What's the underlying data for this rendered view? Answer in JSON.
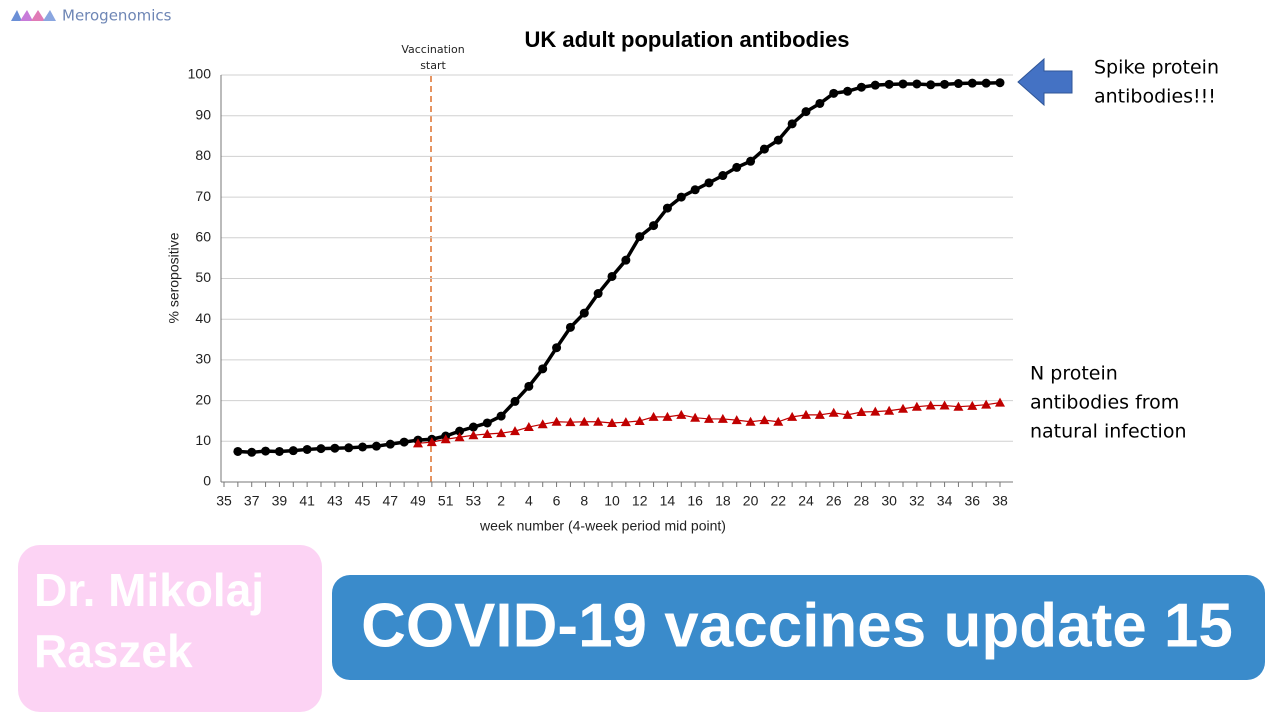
{
  "brand": "Merogenomics",
  "chart_data": {
    "type": "line",
    "title": "UK adult population antibodies",
    "x_label": "week number  (4-week period mid point)",
    "y_label": "% seropositive",
    "categories": [
      "35",
      null,
      "37",
      null,
      "39",
      null,
      "41",
      null,
      "43",
      null,
      "45",
      null,
      "47",
      null,
      "49",
      null,
      "51",
      null,
      "53",
      null,
      "2",
      null,
      "4",
      null,
      "6",
      null,
      "8",
      null,
      "10",
      null,
      "12",
      null,
      "14",
      null,
      "16",
      null,
      "18",
      null,
      "20",
      null,
      "22",
      null,
      "24",
      null,
      "26",
      null,
      "28",
      null,
      "30",
      null,
      "32",
      null,
      "34",
      null,
      "36",
      null,
      "38"
    ],
    "series": [
      {
        "name": "Spike protein",
        "color": "#000000",
        "marker": "circle",
        "values": [
          null,
          7.5,
          7.3,
          7.6,
          7.5,
          7.7,
          8,
          8.2,
          8.3,
          8.4,
          8.6,
          8.8,
          9.3,
          9.8,
          10.3,
          10.5,
          11.3,
          12.5,
          13.5,
          14.5,
          16.2,
          19.8,
          23.5,
          27.8,
          33,
          38,
          41.5,
          46.3,
          50.5,
          54.5,
          60.3,
          63,
          67.3,
          70,
          71.8,
          73.5,
          75.3,
          77.3,
          78.8,
          81.8,
          84,
          88,
          91,
          93,
          95.5,
          96,
          97,
          97.5,
          97.7,
          97.8,
          97.8,
          97.6,
          97.7,
          97.9,
          98,
          98,
          98.1
        ]
      },
      {
        "name": "N protein",
        "color": "#c00000",
        "marker": "triangle",
        "values": [
          null,
          null,
          null,
          null,
          null,
          null,
          null,
          null,
          null,
          null,
          null,
          null,
          null,
          null,
          9.5,
          9.8,
          10.5,
          11,
          11.5,
          11.8,
          12,
          12.5,
          13.5,
          14.2,
          14.8,
          14.7,
          14.8,
          14.8,
          14.5,
          14.7,
          15,
          16,
          16,
          16.5,
          15.8,
          15.5,
          15.5,
          15.2,
          14.8,
          15.2,
          14.8,
          16,
          16.5,
          16.5,
          17,
          16.5,
          17.2,
          17.3,
          17.5,
          18,
          18.5,
          18.8,
          18.8,
          18.5,
          18.7,
          19,
          19.5
        ]
      }
    ],
    "ylim": [
      0,
      100
    ],
    "yticks": [
      0,
      10,
      20,
      30,
      40,
      50,
      60,
      70,
      80,
      90,
      100
    ],
    "grid": true,
    "annotations": {
      "vaccination": [
        "Vaccination",
        "start"
      ],
      "spike": [
        "Spike protein",
        "antibodies!!!"
      ],
      "n_protein": [
        "N protein",
        "antibodies from",
        "natural infection"
      ]
    }
  },
  "author": [
    "Dr. Mikolaj",
    "Raszek"
  ],
  "banner": "COVID-19 vaccines update 15"
}
